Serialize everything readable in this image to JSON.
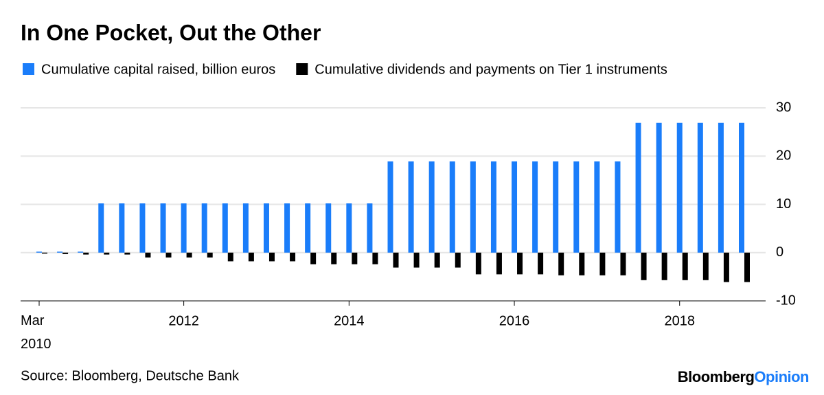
{
  "chart_data": {
    "type": "bar",
    "title": "In One Pocket, Out the Other",
    "source": "Source: Bloomberg, Deutsche Bank",
    "brand": [
      "Bloomberg",
      "Opinion"
    ],
    "categories": [
      "Mar 2010",
      null,
      null,
      null,
      null,
      null,
      null,
      "2012",
      null,
      null,
      null,
      null,
      null,
      null,
      null,
      "2014",
      null,
      null,
      null,
      null,
      null,
      null,
      null,
      "2016",
      null,
      null,
      null,
      null,
      null,
      null,
      null,
      "2018",
      null,
      null,
      null
    ],
    "series": [
      {
        "name": "Cumulative capital raised, billion euros",
        "color": "#1a7dfa",
        "values": [
          0.2,
          0.2,
          0.2,
          10.2,
          10.2,
          10.2,
          10.2,
          10.2,
          10.2,
          10.2,
          10.2,
          10.2,
          10.2,
          10.2,
          10.2,
          10.2,
          10.2,
          18.9,
          18.9,
          18.9,
          18.9,
          18.9,
          18.9,
          18.9,
          18.9,
          18.9,
          18.9,
          18.9,
          18.9,
          26.9,
          26.9,
          26.9,
          26.9,
          26.9,
          26.9
        ]
      },
      {
        "name": "Cumulative dividends and payments on Tier 1 instruments",
        "color": "#000000",
        "values": [
          -0.2,
          -0.3,
          -0.4,
          -0.4,
          -0.4,
          -1.0,
          -1.0,
          -1.0,
          -1.0,
          -1.8,
          -1.8,
          -1.8,
          -1.8,
          -2.4,
          -2.4,
          -2.4,
          -2.4,
          -3.1,
          -3.1,
          -3.1,
          -3.1,
          -4.5,
          -4.5,
          -4.5,
          -4.5,
          -4.7,
          -4.7,
          -4.7,
          -4.7,
          -5.7,
          -5.7,
          -5.7,
          -5.7,
          -6.1,
          -6.1
        ]
      }
    ],
    "ylim": [
      -10,
      30
    ],
    "yticks": [
      -10,
      0,
      10,
      20,
      30
    ],
    "grid": true
  }
}
